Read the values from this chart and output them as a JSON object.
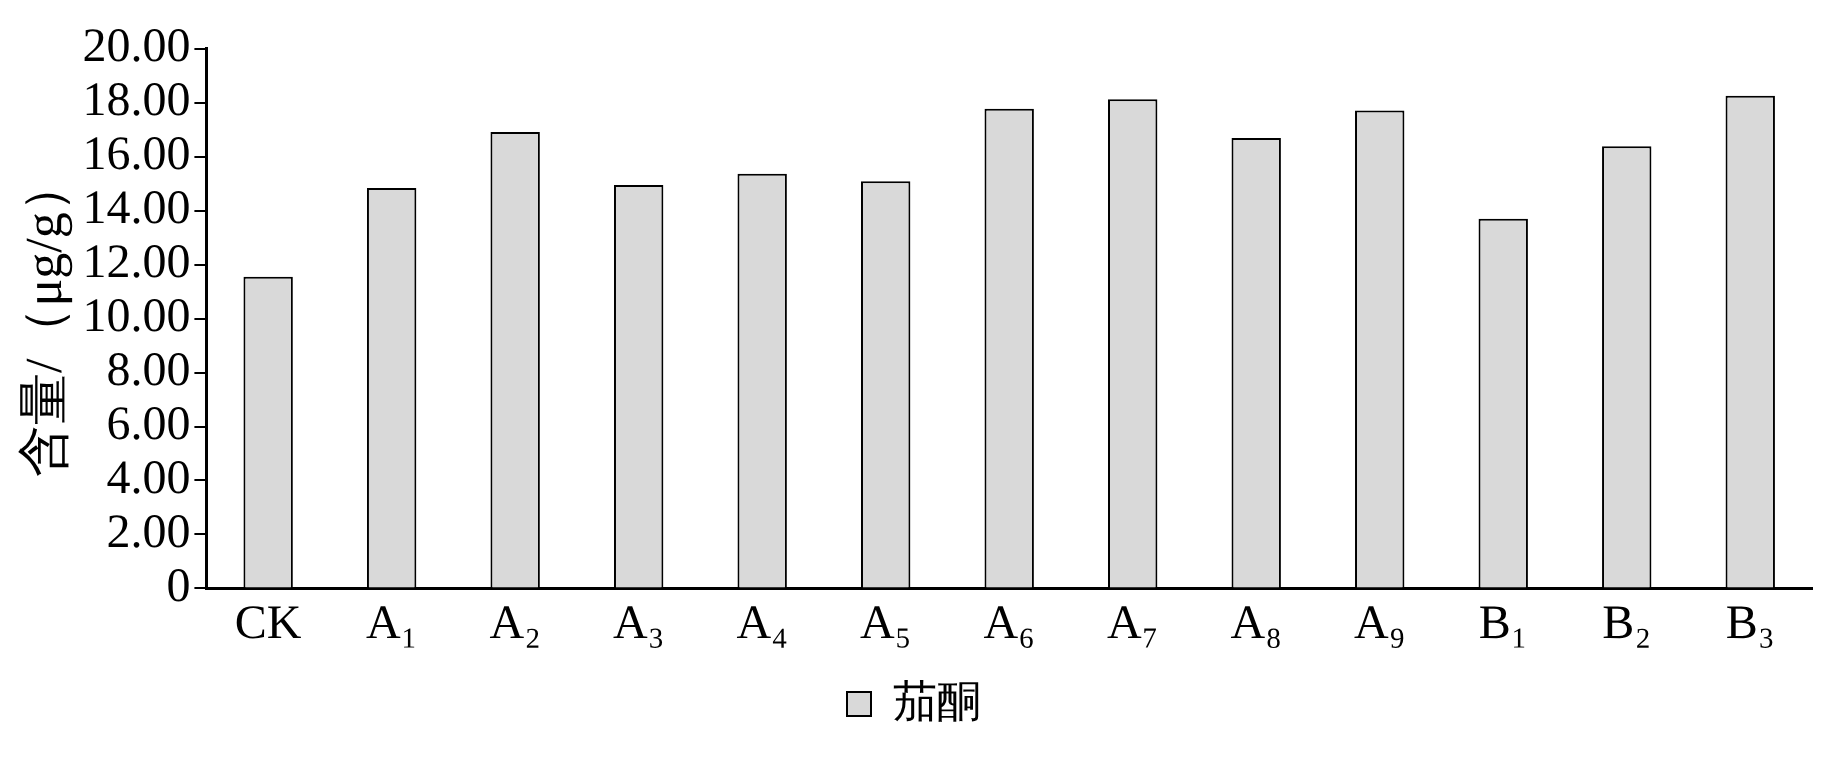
{
  "chart_data": {
    "type": "bar",
    "ylabel": "含量/（μg/g）",
    "categories": [
      "CK",
      "A₁",
      "A₂",
      "A₃",
      "A₄",
      "A₅",
      "A₆",
      "A₇",
      "A₈",
      "A₉",
      "B₁",
      "B₂",
      "B₃"
    ],
    "series": [
      {
        "name": "茄酮",
        "color": "#d9d9d9",
        "values": [
          11.55,
          14.84,
          16.92,
          14.95,
          15.37,
          15.09,
          17.78,
          18.13,
          16.69,
          17.71,
          13.7,
          16.39,
          18.26
        ]
      }
    ],
    "ylim": [
      0,
      20
    ],
    "yticks": [
      0,
      {
        "value": 2,
        "label": "2.00"
      },
      {
        "value": 4,
        "label": "4.00"
      },
      {
        "value": 6,
        "label": "6.00"
      },
      {
        "value": 8,
        "label": "8.00"
      },
      {
        "value": 10,
        "label": "10.00"
      },
      {
        "value": 12,
        "label": "12.00"
      },
      {
        "value": 14,
        "label": "14.00"
      },
      {
        "value": 16,
        "label": "16.00"
      },
      {
        "value": 18,
        "label": "18.00"
      },
      {
        "value": 20,
        "label": "20.00"
      }
    ],
    "grid": false,
    "legend": "bottom"
  }
}
